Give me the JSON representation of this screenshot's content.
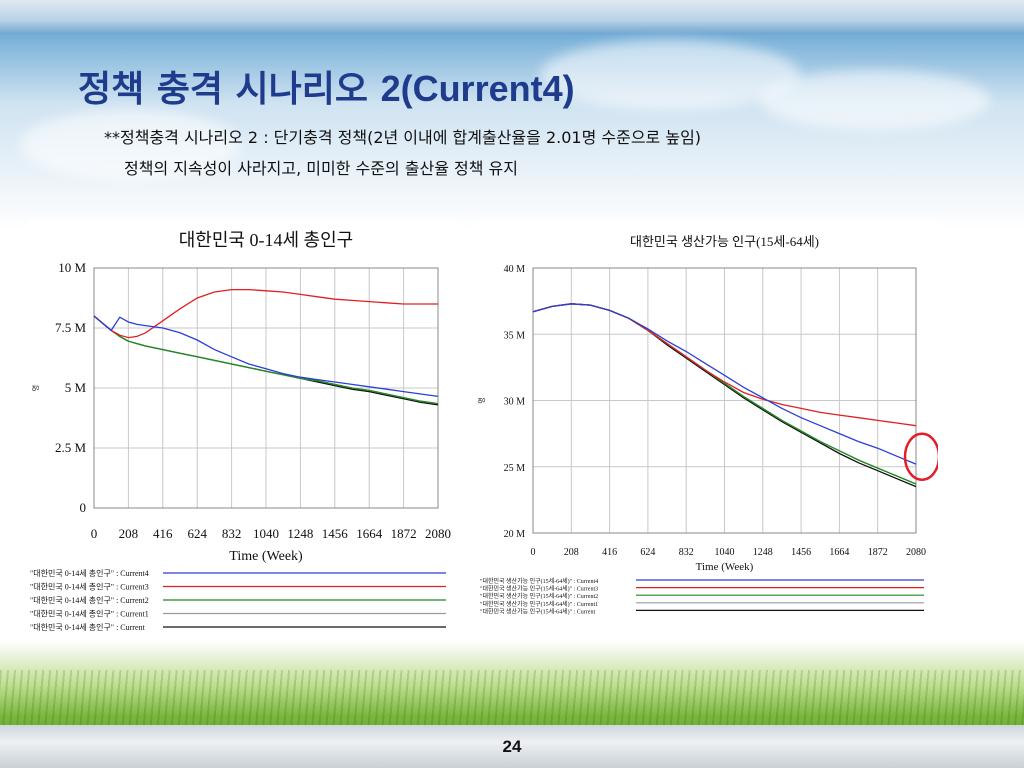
{
  "slide": {
    "title_korean": "정책 충격 시나리오 ",
    "title_latin": "2(Current4)",
    "subtitle_line1": "**정책충격 시나리오 2 : 단기충격 정책(2년 이내에 합계출산율을 2.01명 수준으로 높임)",
    "subtitle_line2": "정책의 지속성이 사라지고, 미미한 수준의 출산율 정책 유지",
    "page_number": "24"
  },
  "colors": {
    "title": "#1f3b8c",
    "current4": "#2b3fd6",
    "current3": "#e02020",
    "current2": "#1f8a1f",
    "current1": "#9a9a9a",
    "current": "#111111",
    "highlight_circle": "#e0202a"
  },
  "chart_data": [
    {
      "type": "line",
      "title": "대한민국 0-14세 총인구",
      "xlabel": "Time (Week)",
      "ylabel": "명",
      "xlim": [
        0,
        2080
      ],
      "ylim": [
        0,
        10000000
      ],
      "x_ticks": [
        "0",
        "208",
        "416",
        "624",
        "832",
        "1040",
        "1248",
        "1456",
        "1664",
        "1872",
        "2080"
      ],
      "y_ticks": [
        "0",
        "2.5 M",
        "5 M",
        "7.5 M",
        "10 M"
      ],
      "y_tick_values": [
        0,
        2500000,
        5000000,
        7500000,
        10000000
      ],
      "grid": true,
      "legend_position": "bottom",
      "x": [
        0,
        52,
        104,
        156,
        208,
        260,
        312,
        416,
        520,
        624,
        728,
        832,
        936,
        1040,
        1144,
        1248,
        1352,
        1456,
        1560,
        1664,
        1768,
        1872,
        1976,
        2080
      ],
      "series": [
        {
          "name": "\"대한민국 0-14세 총인구\" : Current4",
          "color_key": "current4",
          "values": [
            8000000,
            7700000,
            7400000,
            7950000,
            7750000,
            7650000,
            7600000,
            7500000,
            7300000,
            7000000,
            6600000,
            6300000,
            6000000,
            5800000,
            5600000,
            5450000,
            5350000,
            5250000,
            5150000,
            5050000,
            4950000,
            4850000,
            4750000,
            4650000
          ]
        },
        {
          "name": "\"대한민국 0-14세 총인구\" : Current3",
          "color_key": "current3",
          "values": [
            8000000,
            7700000,
            7400000,
            7200000,
            7100000,
            7150000,
            7300000,
            7800000,
            8300000,
            8750000,
            9000000,
            9100000,
            9100000,
            9050000,
            9000000,
            8900000,
            8800000,
            8700000,
            8650000,
            8600000,
            8550000,
            8500000,
            8500000,
            8500000
          ]
        },
        {
          "name": "\"대한민국 0-14세 총인구\" : Current2",
          "color_key": "current2",
          "values": [
            8000000,
            7700000,
            7400000,
            7150000,
            6950000,
            6850000,
            6750000,
            6600000,
            6450000,
            6300000,
            6150000,
            6000000,
            5850000,
            5700000,
            5550000,
            5400000,
            5300000,
            5150000,
            5000000,
            4900000,
            4750000,
            4600000,
            4450000,
            4350000
          ]
        },
        {
          "name": "\"대한민국 0-14세 총인구\" : Current1",
          "color_key": "current1",
          "values": [
            8000000,
            7700000,
            7400000,
            7150000,
            6950000,
            6850000,
            6750000,
            6600000,
            6450000,
            6300000,
            6150000,
            6000000,
            5850000,
            5700000,
            5550000,
            5400000,
            5300000,
            5150000,
            5000000,
            4900000,
            4750000,
            4600000,
            4450000,
            4350000
          ]
        },
        {
          "name": "\"대한민국 0-14세 총인구\" : Current",
          "color_key": "current",
          "values": [
            8000000,
            7700000,
            7400000,
            7150000,
            6950000,
            6850000,
            6750000,
            6600000,
            6450000,
            6300000,
            6150000,
            6000000,
            5850000,
            5700000,
            5550000,
            5400000,
            5250000,
            5100000,
            4950000,
            4850000,
            4700000,
            4550000,
            4400000,
            4300000
          ]
        }
      ]
    },
    {
      "type": "line",
      "title": "대한민국 생산가능 인구(15세-64세)",
      "xlabel": "Time (Week)",
      "ylabel": "명",
      "xlim": [
        0,
        2080
      ],
      "ylim": [
        20000000,
        40000000
      ],
      "x_ticks": [
        "0",
        "208",
        "416",
        "624",
        "832",
        "1040",
        "1248",
        "1456",
        "1664",
        "1872",
        "2080"
      ],
      "y_ticks": [
        "20 M",
        "25 M",
        "30 M",
        "35 M",
        "40 M"
      ],
      "y_tick_values": [
        20000000,
        25000000,
        30000000,
        35000000,
        40000000
      ],
      "grid": true,
      "legend_position": "bottom",
      "x": [
        0,
        104,
        208,
        312,
        416,
        520,
        624,
        728,
        832,
        936,
        1040,
        1144,
        1248,
        1352,
        1456,
        1560,
        1664,
        1768,
        1872,
        1976,
        2080
      ],
      "series": [
        {
          "name": "\"대한민국 생산가능 인구(15세-64세)\" : Current4",
          "color_key": "current4",
          "values": [
            36700000,
            37100000,
            37300000,
            37200000,
            36800000,
            36200000,
            35400000,
            34500000,
            33700000,
            32800000,
            31900000,
            31000000,
            30200000,
            29400000,
            28700000,
            28100000,
            27500000,
            26900000,
            26400000,
            25800000,
            25200000
          ]
        },
        {
          "name": "\"대한민국 생산가능 인구(15세-64세)\" : Current3",
          "color_key": "current3",
          "values": [
            36700000,
            37100000,
            37300000,
            37200000,
            36800000,
            36200000,
            35300000,
            34300000,
            33300000,
            32300000,
            31400000,
            30600000,
            30100000,
            29700000,
            29400000,
            29100000,
            28900000,
            28700000,
            28500000,
            28300000,
            28100000
          ]
        },
        {
          "name": "\"대한민국 생산가능 인구(15세-64세)\" : Current2",
          "color_key": "current2",
          "values": [
            36700000,
            37100000,
            37300000,
            37200000,
            36800000,
            36200000,
            35300000,
            34300000,
            33300000,
            32300000,
            31300000,
            30300000,
            29400000,
            28500000,
            27700000,
            26900000,
            26200000,
            25500000,
            24900000,
            24300000,
            23700000
          ]
        },
        {
          "name": "\"대한민국 생산가능 인구(15세-64세)\" : Current1",
          "color_key": "current1",
          "values": [
            36700000,
            37100000,
            37300000,
            37200000,
            36800000,
            36200000,
            35300000,
            34300000,
            33300000,
            32300000,
            31300000,
            30300000,
            29400000,
            28500000,
            27700000,
            26900000,
            26200000,
            25500000,
            24900000,
            24300000,
            23700000
          ]
        },
        {
          "name": "\"대한민국 생산가능 인구(15세-64세)\" : Current",
          "color_key": "current",
          "values": [
            36700000,
            37100000,
            37300000,
            37200000,
            36800000,
            36200000,
            35300000,
            34200000,
            33200000,
            32200000,
            31200000,
            30200000,
            29300000,
            28400000,
            27600000,
            26800000,
            26000000,
            25300000,
            24700000,
            24100000,
            23500000
          ]
        }
      ]
    }
  ]
}
